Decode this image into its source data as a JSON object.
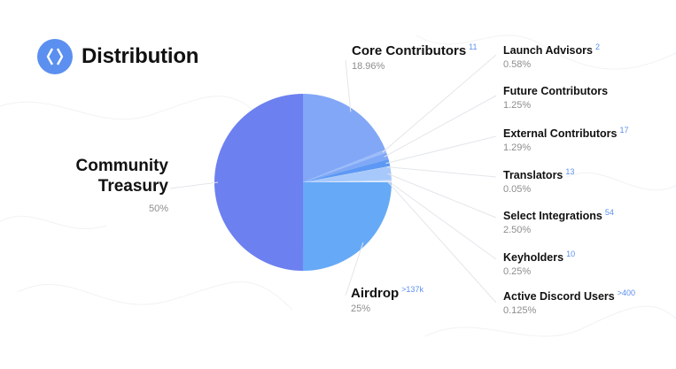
{
  "header": {
    "title": "Distribution",
    "logo_icon": "ens-logo-icon"
  },
  "colors": {
    "accent": "#5b8ff0"
  },
  "chart_data": {
    "type": "pie",
    "title": "Distribution",
    "legend": "callout-labels",
    "slices": [
      {
        "name": "Core Contributors",
        "value": 18.96,
        "pct": "18.96%",
        "count": "11",
        "color": "#82a7f7"
      },
      {
        "name": "Launch Advisors",
        "value": 0.58,
        "pct": "0.58%",
        "count": "2",
        "color": "#9bbcf9"
      },
      {
        "name": "Future Contributors",
        "value": 1.25,
        "pct": "1.25%",
        "count": "",
        "color": "#7fa8f6"
      },
      {
        "name": "External Contributors",
        "value": 1.29,
        "pct": "1.29%",
        "count": "17",
        "color": "#5d99f4"
      },
      {
        "name": "Translators",
        "value": 0.05,
        "pct": "0.05%",
        "count": "13",
        "color": "#bcd5fb"
      },
      {
        "name": "Select Integrations",
        "value": 2.5,
        "pct": "2.50%",
        "count": "54",
        "color": "#a7c8fa"
      },
      {
        "name": "Keyholders",
        "value": 0.25,
        "pct": "0.25%",
        "count": "10",
        "color": "#cfe1fc"
      },
      {
        "name": "Active Discord Users",
        "value": 0.125,
        "pct": "0.125%",
        "count": ">400",
        "color": "#e3eefd"
      },
      {
        "name": "Airdrop",
        "value": 25,
        "pct": "25%",
        "count": ">137k",
        "color": "#66a9f6"
      },
      {
        "name": "Community Treasury",
        "value": 50,
        "pct": "50%",
        "count": "",
        "color": "#6c80f0"
      }
    ]
  }
}
